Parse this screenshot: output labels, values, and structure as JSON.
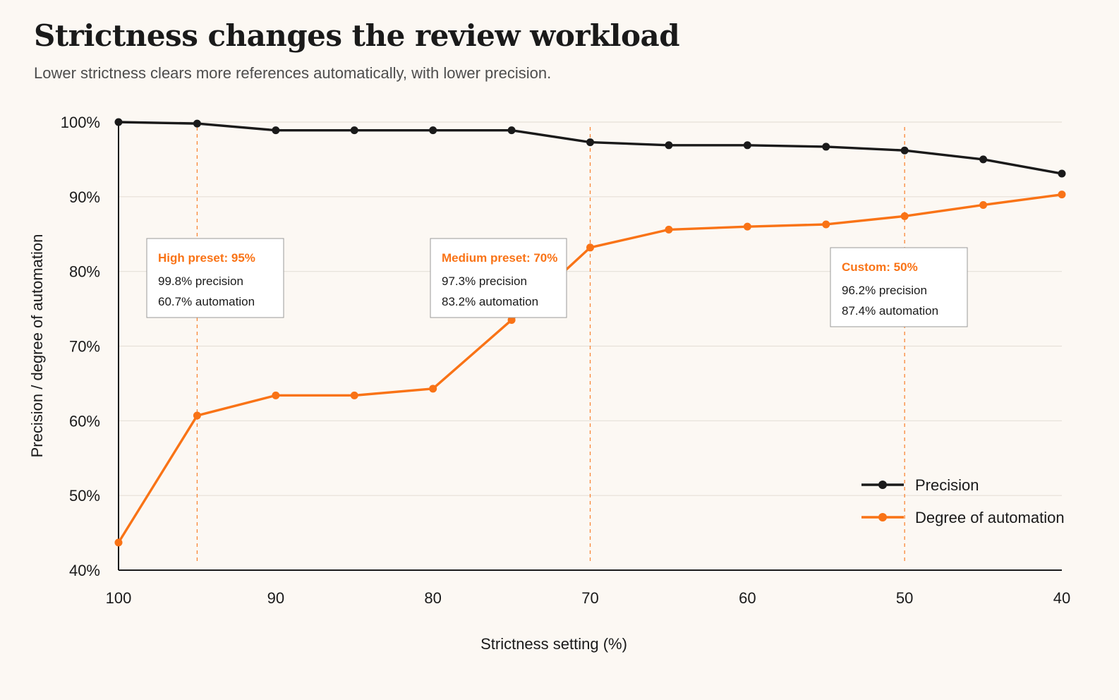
{
  "header": {
    "title": "Strictness changes the review workload",
    "subtitle": "Lower strictness clears more references automatically, with lower precision."
  },
  "colors": {
    "background": "#fcf8f3",
    "precision": "#1a1a1a",
    "automation": "#f97316",
    "grid": "#e6e0d8"
  },
  "chart_data": {
    "type": "line",
    "xlabel": "Strictness setting (%)",
    "ylabel": "Precision / degree of automation",
    "x_reversed": true,
    "xlim": [
      100,
      40
    ],
    "ylim": [
      40,
      100
    ],
    "x_ticks": [
      100,
      90,
      80,
      70,
      60,
      50,
      40
    ],
    "x_tick_labels": [
      "100",
      "90",
      "80",
      "70",
      "60",
      "50",
      "40"
    ],
    "y_ticks": [
      100,
      90,
      80,
      70,
      60,
      50,
      40
    ],
    "y_tick_labels": [
      "100%",
      "90%",
      "80%",
      "70%",
      "60%",
      "50%",
      "40%"
    ],
    "grid": "horizontal",
    "legend_position": "bottom-right",
    "x": [
      100,
      95,
      90,
      85,
      80,
      75,
      70,
      65,
      60,
      55,
      50,
      45,
      40
    ],
    "series": [
      {
        "name": "Precision",
        "color": "#1a1a1a",
        "values": [
          100.0,
          99.8,
          98.9,
          98.9,
          98.9,
          98.9,
          97.3,
          96.9,
          96.9,
          96.7,
          96.2,
          95.0,
          93.1
        ]
      },
      {
        "name": "Degree of automation",
        "color": "#f97316",
        "values": [
          43.7,
          60.7,
          63.4,
          63.4,
          64.3,
          73.5,
          83.2,
          85.6,
          86.0,
          86.3,
          87.4,
          88.9,
          90.3
        ]
      }
    ],
    "reference_lines": [
      95,
      70,
      50
    ],
    "annotations": [
      {
        "x": 95,
        "title": "High preset: 95%",
        "line1": "99.8% precision",
        "line2": "60.7% automation"
      },
      {
        "x": 70,
        "title": "Medium preset: 70%",
        "line1": "97.3% precision",
        "line2": "83.2% automation"
      },
      {
        "x": 50,
        "title": "Custom: 50%",
        "line1": "96.2% precision",
        "line2": "87.4% automation"
      }
    ]
  }
}
